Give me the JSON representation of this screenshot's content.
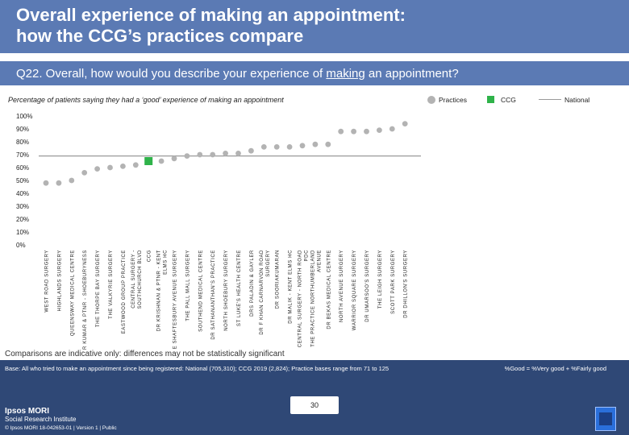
{
  "header": {
    "title_line1": "Overall experience of making an appointment:",
    "title_line2": "how the CCG’s practices compare"
  },
  "question": {
    "prefix": "Q22. Overall, how would you describe your experience of ",
    "underlined": "making",
    "suffix": " an appointment?"
  },
  "subtitle": "Percentage of patients saying they had  a ‘good’ experience of making an appointment",
  "legend": {
    "practices": "Practices",
    "ccg": "CCG",
    "national": "National"
  },
  "colors": {
    "header": "#5b7ab4",
    "footer": "#2f4876",
    "practice_marker": "#b3b3b3",
    "ccg_marker": "#2fb34a",
    "national_line": "#9a9a9a"
  },
  "chart_data": {
    "type": "scatter",
    "ylim": [
      0,
      100
    ],
    "yticks": [
      "100%",
      "90%",
      "80%",
      "70%",
      "60%",
      "50%",
      "40%",
      "30%",
      "20%",
      "10%",
      "0%"
    ],
    "national_value": 69,
    "categories": [
      "WEST ROAD SURGERY",
      "HIGHLANDS SURGERY",
      "QUEENSWAY MEDICAL CENTRE",
      "DR KUMAR & PTNR - SHOEBURYNESS",
      "THE THORPE BAY SURGERY",
      "THE VALKYRIE SURGERY",
      "EASTWOOD GROUP PRACTICE",
      "CENTRAL SURGERY - SOUTHCHURCH BLVD",
      "CCG",
      "DR KRISHNAN & PTNR - KENT ELMS HC",
      "THE SHAFTESBURY AVENUE SURGERY",
      "THE PALL MALL SURGERY",
      "SOUTHEND MEDICAL CENTRE",
      "DR SATHANANTHAN'S PRACTICE",
      "NORTH SHOEBURY SURGERY",
      "ST LUKE'S HEALTH CENTRE",
      "DRS PALADIN & GAYLER",
      "DR F KHAN CARNARVON ROAD SURGERY",
      "DR SOORIAKUMARAN",
      "DR MALIK - KENT ELMS HC",
      "CENTRAL SURGERY - NORTH ROAD PDC",
      "THE PRACTICE NORTHUMBERLAND AVENUE",
      "DR BEKAS MEDICAL CENTRE",
      "NORTH AVENUE SURGERY",
      "WARRIOR SQUARE SURGERY",
      "DR UMARSOO'S SURGERY",
      "THE LEIGH SURGERY",
      "SCOTT PARK SURGERY",
      "DR DHILLON'S SURGERY"
    ],
    "values": [
      48,
      48,
      50,
      56,
      59,
      60,
      61,
      62,
      65,
      65,
      67,
      69,
      70,
      70,
      71,
      71,
      73,
      76,
      76,
      76,
      77,
      78,
      78,
      88,
      88,
      88,
      89,
      90,
      94
    ],
    "ccg_index": 8
  },
  "note": "Comparisons are indicative only: differences may not be statistically significant",
  "footer": {
    "base": "Base: All who tried to make an appointment since being registered: National (705,310); CCG 2019 (2,824); Practice bases range from 71 to 125",
    "good_note": "%Good = %Very good + %Fairly good",
    "page_number": "30",
    "brand_line1": "Ipsos MORI",
    "brand_line2": "Social Research Institute",
    "copyright": "© Ipsos MORI     18-042653-01 | Version 1 | Public",
    "logo_text": "Ipsos"
  }
}
